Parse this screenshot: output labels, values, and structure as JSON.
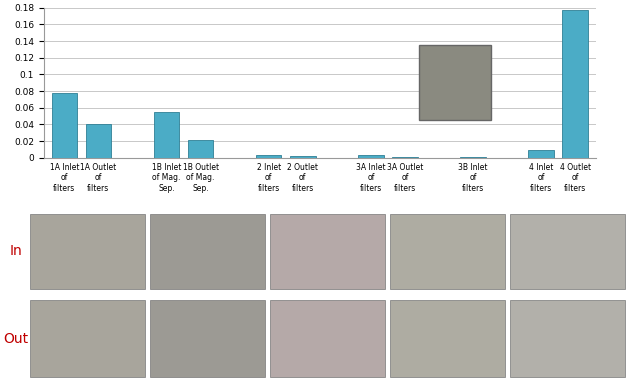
{
  "chart_data": {
    "type": "bar",
    "categories": [
      "1A Inlet of filters",
      "1A Outlet of filters",
      null,
      "1B Inlet of Mag. Sep.",
      "1B Outlet of Mag. Sep.",
      null,
      "2 Inlet of filters",
      "2 Outlet of filters",
      null,
      "3A Inlet of filters",
      "3A Outlet of filters",
      null,
      "3B Inlet of filters",
      null,
      "4 Inlet of filters",
      "4 Outlet of filters"
    ],
    "values": [
      0.078,
      0.04,
      null,
      0.055,
      0.021,
      null,
      0.003,
      0.002,
      null,
      0.004,
      0.001,
      null,
      0.001,
      null,
      0.009,
      0.177
    ],
    "color": "#4bacc6",
    "ylim": [
      0,
      0.18
    ],
    "yticks": [
      0,
      0.02,
      0.04,
      0.06,
      0.08,
      0.1,
      0.12,
      0.14,
      0.16,
      0.18
    ],
    "grid": true
  },
  "photo_rows": {
    "labels": [
      "In",
      "Out"
    ]
  }
}
